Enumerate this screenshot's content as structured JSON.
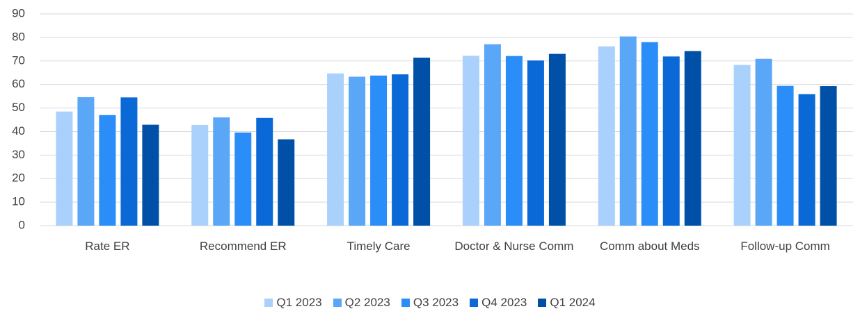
{
  "chart_data": {
    "type": "bar",
    "categories": [
      "Rate ER",
      "Recommend ER",
      "Timely Care",
      "Doctor & Nurse Comm",
      "Comm about Meds",
      "Follow-up Comm"
    ],
    "series": [
      {
        "name": "Q1 2023",
        "color": "#a9d1fb",
        "values": [
          48.5,
          42.8,
          64.7,
          72.2,
          76.2,
          68.3
        ]
      },
      {
        "name": "Q2 2023",
        "color": "#5aa7f8",
        "values": [
          54.6,
          46.0,
          63.3,
          77.1,
          80.4,
          70.9
        ]
      },
      {
        "name": "Q3 2023",
        "color": "#2b8ef8",
        "values": [
          47.0,
          39.6,
          63.8,
          72.1,
          78.0,
          59.4
        ]
      },
      {
        "name": "Q4 2023",
        "color": "#0a69d7",
        "values": [
          54.5,
          45.8,
          64.3,
          70.2,
          71.9,
          55.9
        ]
      },
      {
        "name": "Q1 2024",
        "color": "#0050a8",
        "values": [
          42.9,
          36.7,
          71.4,
          73.0,
          74.2,
          59.3
        ]
      }
    ],
    "ylim": [
      0,
      90
    ],
    "yticks": [
      0,
      10,
      20,
      30,
      40,
      50,
      60,
      70,
      80,
      90
    ],
    "grid": true,
    "legend": "bottom"
  }
}
